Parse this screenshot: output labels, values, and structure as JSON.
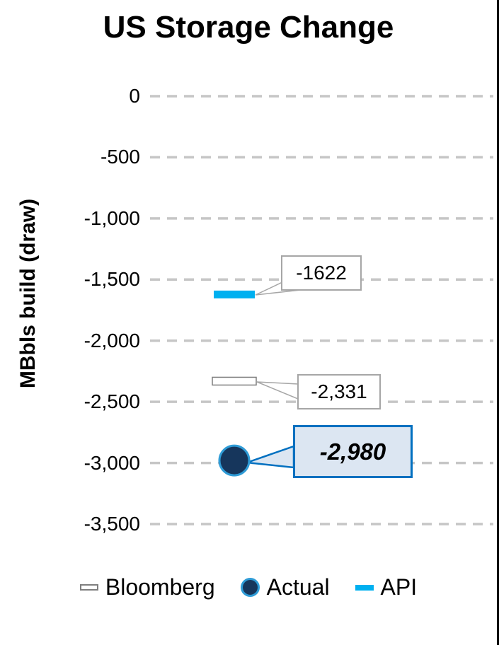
{
  "chart_data": {
    "type": "scatter",
    "title": "US Storage Change",
    "ylabel": "MBbls build (draw)",
    "ylim": [
      -3500,
      0
    ],
    "ytick_values": [
      0,
      -500,
      -1000,
      -1500,
      -2000,
      -2500,
      -3000,
      -3500
    ],
    "ytick_labels": [
      "0",
      "-500",
      "-1,000",
      "-1,500",
      "-2,000",
      "-2,500",
      "-3,000",
      "-3,500"
    ],
    "grid": {
      "orientation": "horizontal",
      "style": "dashed",
      "color": "#c6c6c6"
    },
    "legend_position": "bottom",
    "series": [
      {
        "name": "Bloomberg",
        "marker": "hollow-bar",
        "fill": "#ffffff",
        "stroke": "#7f7f7f",
        "value": -2331,
        "data_label": "-2,331",
        "callout_style": "plain"
      },
      {
        "name": "Actual",
        "marker": "circle",
        "fill": "#16365c",
        "stroke": "#2e9bd6",
        "value": -2980,
        "data_label": "-2,980",
        "callout_style": "highlight"
      },
      {
        "name": "API",
        "marker": "dash",
        "fill": "#00b0f0",
        "stroke": "#00b0f0",
        "value": -1622,
        "data_label": "-1622",
        "callout_style": "plain"
      }
    ],
    "colors": {
      "highlight_box_fill": "#dce6f2",
      "highlight_box_border": "#0070c0",
      "plain_box_border": "#a6a6a6",
      "api_cyan": "#00b0f0",
      "actual_navy": "#16365c",
      "grid_gray": "#c6c6c6"
    }
  }
}
